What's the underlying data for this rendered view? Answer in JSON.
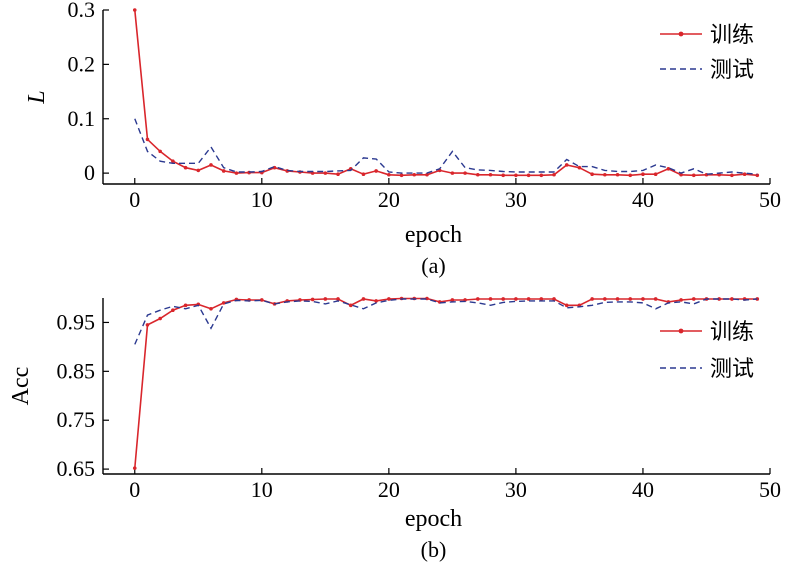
{
  "chart_data": [
    {
      "type": "line",
      "panel_label": "(a)",
      "xlabel": "epoch",
      "ylabel": "L",
      "xlim": [
        -2.5,
        50
      ],
      "ylim": [
        -0.02,
        0.3
      ],
      "xticks": [
        0,
        10,
        20,
        30,
        40,
        50
      ],
      "yticks": [
        0,
        0.1,
        0.2,
        0.3
      ],
      "ytick_labels": [
        "0",
        "0.1",
        "0.2",
        "0.3"
      ],
      "legend_position": "top-right",
      "grid": false,
      "x": [
        0,
        1,
        2,
        3,
        4,
        5,
        6,
        7,
        8,
        9,
        10,
        11,
        12,
        13,
        14,
        15,
        16,
        17,
        18,
        19,
        20,
        21,
        22,
        23,
        24,
        25,
        26,
        27,
        28,
        29,
        30,
        31,
        32,
        33,
        34,
        35,
        36,
        37,
        38,
        39,
        40,
        41,
        42,
        43,
        44,
        45,
        46,
        47,
        48,
        49
      ],
      "series": [
        {
          "name": "训练",
          "style": "solid-marker",
          "color": "#d9262c",
          "values": [
            0.3,
            0.062,
            0.04,
            0.022,
            0.01,
            0.005,
            0.015,
            0.004,
            0.0,
            0.001,
            0.001,
            0.01,
            0.004,
            0.002,
            0.0,
            0.0,
            -0.002,
            0.008,
            -0.002,
            0.004,
            -0.003,
            -0.004,
            -0.003,
            -0.003,
            0.005,
            0.0,
            0.0,
            -0.003,
            -0.003,
            -0.004,
            -0.004,
            -0.004,
            -0.004,
            -0.003,
            0.015,
            0.01,
            -0.002,
            -0.003,
            -0.003,
            -0.004,
            -0.002,
            -0.002,
            0.008,
            -0.003,
            -0.004,
            -0.003,
            -0.003,
            -0.004,
            -0.002,
            -0.004
          ]
        },
        {
          "name": "测试",
          "style": "dashed",
          "color": "#2b3990",
          "values": [
            0.1,
            0.04,
            0.022,
            0.018,
            0.018,
            0.018,
            0.048,
            0.01,
            0.002,
            0.002,
            0.003,
            0.012,
            0.005,
            0.003,
            0.003,
            0.003,
            0.004,
            0.005,
            0.028,
            0.026,
            0.002,
            0.0,
            0.0,
            0.0,
            0.008,
            0.04,
            0.01,
            0.006,
            0.005,
            0.003,
            0.002,
            0.002,
            0.002,
            0.002,
            0.025,
            0.012,
            0.012,
            0.005,
            0.003,
            0.003,
            0.005,
            0.015,
            0.01,
            0.0,
            0.008,
            -0.002,
            0.0,
            0.002,
            0.0,
            -0.002
          ]
        }
      ]
    },
    {
      "type": "line",
      "panel_label": "(b)",
      "xlabel": "epoch",
      "ylabel": "Acc",
      "xlim": [
        -2.5,
        50
      ],
      "ylim": [
        0.64,
        1.0
      ],
      "xticks": [
        0,
        10,
        20,
        30,
        40,
        50
      ],
      "yticks": [
        0.65,
        0.75,
        0.85,
        0.95
      ],
      "ytick_labels": [
        "0.65",
        "0.75",
        "0.85",
        "0.95"
      ],
      "legend_position": "right",
      "grid": false,
      "x": [
        0,
        1,
        2,
        3,
        4,
        5,
        6,
        7,
        8,
        9,
        10,
        11,
        12,
        13,
        14,
        15,
        16,
        17,
        18,
        19,
        20,
        21,
        22,
        23,
        24,
        25,
        26,
        27,
        28,
        29,
        30,
        31,
        32,
        33,
        34,
        35,
        36,
        37,
        38,
        39,
        40,
        41,
        42,
        43,
        44,
        45,
        46,
        47,
        48,
        49
      ],
      "series": [
        {
          "name": "训练",
          "style": "solid-marker",
          "color": "#d9262c",
          "values": [
            0.652,
            0.945,
            0.958,
            0.975,
            0.985,
            0.987,
            0.978,
            0.99,
            0.997,
            0.996,
            0.996,
            0.988,
            0.994,
            0.996,
            0.997,
            0.998,
            0.998,
            0.985,
            0.998,
            0.994,
            0.998,
            0.999,
            0.999,
            0.999,
            0.992,
            0.996,
            0.996,
            0.998,
            0.998,
            0.998,
            0.998,
            0.998,
            0.998,
            0.998,
            0.985,
            0.985,
            0.998,
            0.998,
            0.998,
            0.998,
            0.998,
            0.998,
            0.992,
            0.996,
            0.998,
            0.998,
            0.998,
            0.998,
            0.998,
            0.998
          ]
        },
        {
          "name": "测试",
          "style": "dashed",
          "color": "#2b3990",
          "values": [
            0.905,
            0.965,
            0.975,
            0.983,
            0.978,
            0.985,
            0.938,
            0.988,
            0.995,
            0.994,
            0.995,
            0.988,
            0.992,
            0.994,
            0.993,
            0.988,
            0.994,
            0.986,
            0.978,
            0.99,
            0.995,
            0.998,
            0.998,
            0.998,
            0.99,
            0.992,
            0.993,
            0.99,
            0.985,
            0.991,
            0.993,
            0.994,
            0.994,
            0.994,
            0.98,
            0.982,
            0.985,
            0.991,
            0.992,
            0.992,
            0.99,
            0.978,
            0.99,
            0.992,
            0.988,
            0.998,
            0.998,
            0.998,
            0.996,
            0.998
          ]
        }
      ]
    }
  ]
}
